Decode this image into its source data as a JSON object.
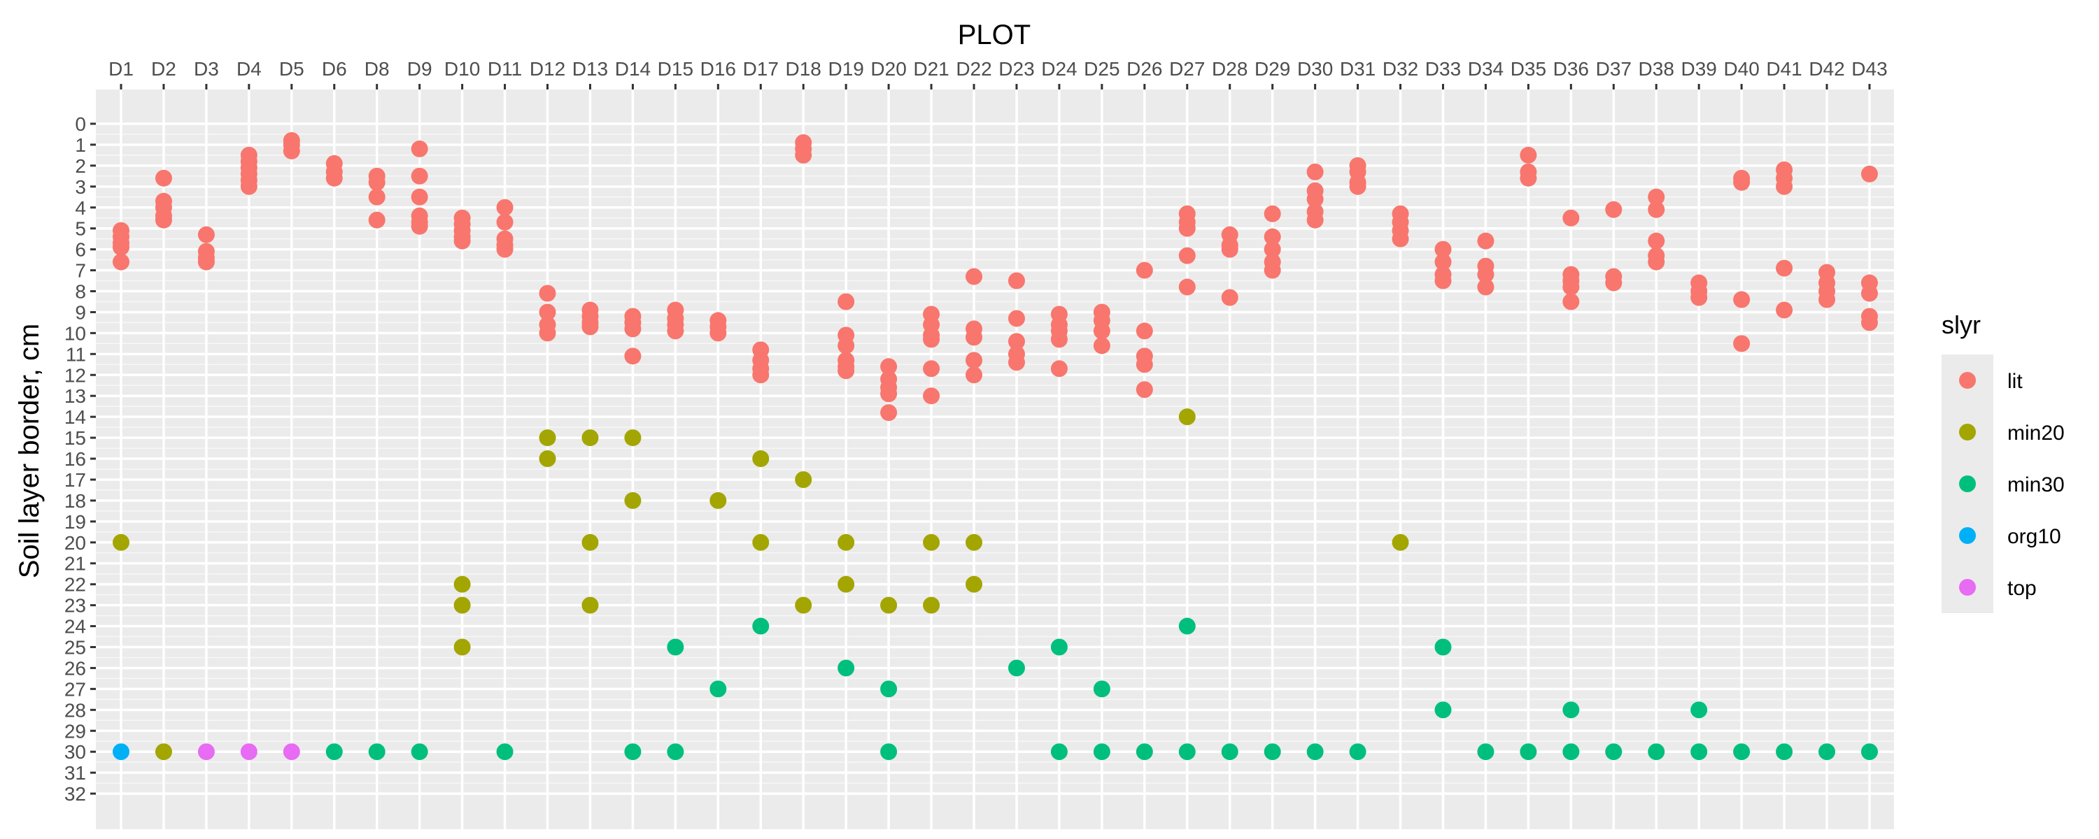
{
  "chart_data": {
    "type": "scatter",
    "title": "",
    "xlabel": "PLOT",
    "ylabel": "Soil layer border, cm",
    "x_axis_position": "top",
    "y_reversed": true,
    "ylim": [
      0,
      32
    ],
    "yticks": [
      0,
      1,
      2,
      3,
      4,
      5,
      6,
      7,
      8,
      9,
      10,
      11,
      12,
      13,
      14,
      15,
      16,
      17,
      18,
      19,
      20,
      21,
      22,
      23,
      24,
      25,
      26,
      27,
      28,
      29,
      30,
      31,
      32
    ],
    "categories": [
      "D1",
      "D2",
      "D3",
      "D4",
      "D5",
      "D6",
      "D8",
      "D9",
      "D10",
      "D11",
      "D12",
      "D13",
      "D14",
      "D15",
      "D16",
      "D17",
      "D18",
      "D19",
      "D20",
      "D21",
      "D22",
      "D23",
      "D24",
      "D25",
      "D26",
      "D27",
      "D28",
      "D29",
      "D30",
      "D31",
      "D32",
      "D33",
      "D34",
      "D35",
      "D36",
      "D37",
      "D38",
      "D39",
      "D40",
      "D41",
      "D42",
      "D43"
    ],
    "grid": true,
    "legend": {
      "title": "slyr",
      "position": "right"
    },
    "series": [
      {
        "name": "lit",
        "color": "#F8766D",
        "points": [
          [
            "D1",
            5.1
          ],
          [
            "D1",
            5.4
          ],
          [
            "D1",
            5.7
          ],
          [
            "D1",
            5.9
          ],
          [
            "D1",
            6.6
          ],
          [
            "D2",
            2.6
          ],
          [
            "D2",
            3.7
          ],
          [
            "D2",
            4.0
          ],
          [
            "D2",
            4.4
          ],
          [
            "D2",
            4.6
          ],
          [
            "D3",
            5.3
          ],
          [
            "D3",
            6.1
          ],
          [
            "D3",
            6.4
          ],
          [
            "D3",
            6.6
          ],
          [
            "D4",
            1.5
          ],
          [
            "D4",
            1.8
          ],
          [
            "D4",
            2.1
          ],
          [
            "D4",
            2.4
          ],
          [
            "D4",
            2.7
          ],
          [
            "D4",
            3.0
          ],
          [
            "D5",
            0.8
          ],
          [
            "D5",
            1.0
          ],
          [
            "D5",
            1.3
          ],
          [
            "D6",
            1.9
          ],
          [
            "D6",
            2.3
          ],
          [
            "D6",
            2.6
          ],
          [
            "D8",
            2.5
          ],
          [
            "D8",
            2.8
          ],
          [
            "D8",
            3.5
          ],
          [
            "D8",
            4.6
          ],
          [
            "D9",
            1.2
          ],
          [
            "D9",
            2.5
          ],
          [
            "D9",
            3.5
          ],
          [
            "D9",
            4.4
          ],
          [
            "D9",
            4.7
          ],
          [
            "D9",
            4.9
          ],
          [
            "D10",
            4.5
          ],
          [
            "D10",
            4.8
          ],
          [
            "D10",
            5.1
          ],
          [
            "D10",
            5.4
          ],
          [
            "D10",
            5.6
          ],
          [
            "D11",
            4.0
          ],
          [
            "D11",
            4.7
          ],
          [
            "D11",
            5.5
          ],
          [
            "D11",
            5.8
          ],
          [
            "D11",
            6.0
          ],
          [
            "D12",
            8.1
          ],
          [
            "D12",
            9.0
          ],
          [
            "D12",
            9.6
          ],
          [
            "D12",
            10.0
          ],
          [
            "D13",
            8.9
          ],
          [
            "D13",
            9.2
          ],
          [
            "D13",
            9.5
          ],
          [
            "D13",
            9.7
          ],
          [
            "D14",
            9.2
          ],
          [
            "D14",
            9.5
          ],
          [
            "D14",
            9.8
          ],
          [
            "D14",
            11.1
          ],
          [
            "D15",
            8.9
          ],
          [
            "D15",
            9.3
          ],
          [
            "D15",
            9.6
          ],
          [
            "D15",
            9.9
          ],
          [
            "D16",
            9.4
          ],
          [
            "D16",
            9.7
          ],
          [
            "D16",
            10.0
          ],
          [
            "D17",
            10.8
          ],
          [
            "D17",
            11.3
          ],
          [
            "D17",
            11.7
          ],
          [
            "D17",
            12.0
          ],
          [
            "D18",
            0.9
          ],
          [
            "D18",
            1.2
          ],
          [
            "D18",
            1.5
          ],
          [
            "D19",
            8.5
          ],
          [
            "D19",
            10.1
          ],
          [
            "D19",
            10.6
          ],
          [
            "D19",
            11.3
          ],
          [
            "D19",
            11.6
          ],
          [
            "D19",
            11.8
          ],
          [
            "D20",
            11.6
          ],
          [
            "D20",
            12.2
          ],
          [
            "D20",
            12.6
          ],
          [
            "D20",
            12.9
          ],
          [
            "D20",
            13.8
          ],
          [
            "D21",
            9.1
          ],
          [
            "D21",
            9.6
          ],
          [
            "D21",
            10.1
          ],
          [
            "D21",
            10.3
          ],
          [
            "D21",
            11.7
          ],
          [
            "D21",
            13.0
          ],
          [
            "D22",
            7.3
          ],
          [
            "D22",
            9.8
          ],
          [
            "D22",
            10.2
          ],
          [
            "D22",
            11.3
          ],
          [
            "D22",
            12.0
          ],
          [
            "D23",
            7.5
          ],
          [
            "D23",
            9.3
          ],
          [
            "D23",
            10.4
          ],
          [
            "D23",
            11.0
          ],
          [
            "D23",
            11.4
          ],
          [
            "D24",
            9.1
          ],
          [
            "D24",
            9.6
          ],
          [
            "D24",
            9.9
          ],
          [
            "D24",
            10.3
          ],
          [
            "D24",
            11.7
          ],
          [
            "D25",
            9.0
          ],
          [
            "D25",
            9.4
          ],
          [
            "D25",
            9.9
          ],
          [
            "D25",
            10.6
          ],
          [
            "D26",
            7.0
          ],
          [
            "D26",
            9.9
          ],
          [
            "D26",
            11.1
          ],
          [
            "D26",
            11.5
          ],
          [
            "D26",
            12.7
          ],
          [
            "D27",
            4.3
          ],
          [
            "D27",
            4.7
          ],
          [
            "D27",
            5.0
          ],
          [
            "D27",
            6.3
          ],
          [
            "D27",
            7.8
          ],
          [
            "D28",
            5.3
          ],
          [
            "D28",
            5.8
          ],
          [
            "D28",
            6.0
          ],
          [
            "D28",
            8.3
          ],
          [
            "D29",
            4.3
          ],
          [
            "D29",
            5.4
          ],
          [
            "D29",
            6.0
          ],
          [
            "D29",
            6.6
          ],
          [
            "D29",
            7.0
          ],
          [
            "D30",
            2.3
          ],
          [
            "D30",
            3.2
          ],
          [
            "D30",
            3.6
          ],
          [
            "D30",
            4.2
          ],
          [
            "D30",
            4.6
          ],
          [
            "D31",
            2.0
          ],
          [
            "D31",
            2.3
          ],
          [
            "D31",
            2.8
          ],
          [
            "D31",
            3.0
          ],
          [
            "D32",
            4.3
          ],
          [
            "D32",
            4.7
          ],
          [
            "D32",
            5.1
          ],
          [
            "D32",
            5.5
          ],
          [
            "D33",
            6.0
          ],
          [
            "D33",
            6.6
          ],
          [
            "D33",
            7.2
          ],
          [
            "D33",
            7.5
          ],
          [
            "D34",
            5.6
          ],
          [
            "D34",
            6.8
          ],
          [
            "D34",
            7.2
          ],
          [
            "D34",
            7.8
          ],
          [
            "D35",
            1.5
          ],
          [
            "D35",
            2.3
          ],
          [
            "D35",
            2.6
          ],
          [
            "D36",
            4.5
          ],
          [
            "D36",
            7.2
          ],
          [
            "D36",
            7.5
          ],
          [
            "D36",
            7.8
          ],
          [
            "D36",
            8.5
          ],
          [
            "D37",
            4.1
          ],
          [
            "D37",
            7.3
          ],
          [
            "D37",
            7.6
          ],
          [
            "D38",
            3.5
          ],
          [
            "D38",
            4.1
          ],
          [
            "D38",
            5.6
          ],
          [
            "D38",
            6.3
          ],
          [
            "D38",
            6.6
          ],
          [
            "D39",
            7.6
          ],
          [
            "D39",
            8.0
          ],
          [
            "D39",
            8.3
          ],
          [
            "D40",
            2.6
          ],
          [
            "D40",
            2.8
          ],
          [
            "D40",
            8.4
          ],
          [
            "D40",
            10.5
          ],
          [
            "D41",
            2.2
          ],
          [
            "D41",
            2.6
          ],
          [
            "D41",
            3.0
          ],
          [
            "D41",
            6.9
          ],
          [
            "D41",
            8.9
          ],
          [
            "D42",
            7.1
          ],
          [
            "D42",
            7.6
          ],
          [
            "D42",
            8.0
          ],
          [
            "D42",
            8.4
          ],
          [
            "D43",
            2.4
          ],
          [
            "D43",
            7.6
          ],
          [
            "D43",
            8.1
          ],
          [
            "D43",
            9.2
          ],
          [
            "D43",
            9.5
          ]
        ]
      },
      {
        "name": "min20",
        "color": "#A3A500",
        "points": [
          [
            "D1",
            20
          ],
          [
            "D2",
            30
          ],
          [
            "D10",
            22
          ],
          [
            "D10",
            23
          ],
          [
            "D10",
            25
          ],
          [
            "D12",
            15
          ],
          [
            "D12",
            16
          ],
          [
            "D13",
            15
          ],
          [
            "D13",
            20
          ],
          [
            "D13",
            23
          ],
          [
            "D14",
            15
          ],
          [
            "D14",
            18
          ],
          [
            "D16",
            18
          ],
          [
            "D17",
            16
          ],
          [
            "D17",
            20
          ],
          [
            "D18",
            17
          ],
          [
            "D18",
            23
          ],
          [
            "D19",
            20
          ],
          [
            "D19",
            22
          ],
          [
            "D20",
            23
          ],
          [
            "D21",
            20
          ],
          [
            "D21",
            23
          ],
          [
            "D22",
            20
          ],
          [
            "D22",
            22
          ],
          [
            "D27",
            14
          ],
          [
            "D32",
            20
          ]
        ]
      },
      {
        "name": "min30",
        "color": "#00BF7D",
        "points": [
          [
            "D6",
            30
          ],
          [
            "D8",
            30
          ],
          [
            "D9",
            30
          ],
          [
            "D11",
            30
          ],
          [
            "D14",
            30
          ],
          [
            "D15",
            25
          ],
          [
            "D15",
            30
          ],
          [
            "D16",
            27
          ],
          [
            "D17",
            24
          ],
          [
            "D19",
            26
          ],
          [
            "D20",
            27
          ],
          [
            "D20",
            30
          ],
          [
            "D23",
            26
          ],
          [
            "D24",
            25
          ],
          [
            "D24",
            30
          ],
          [
            "D25",
            27
          ],
          [
            "D25",
            30
          ],
          [
            "D26",
            30
          ],
          [
            "D27",
            24
          ],
          [
            "D27",
            30
          ],
          [
            "D28",
            30
          ],
          [
            "D29",
            30
          ],
          [
            "D30",
            30
          ],
          [
            "D31",
            30
          ],
          [
            "D33",
            25
          ],
          [
            "D33",
            28
          ],
          [
            "D34",
            30
          ],
          [
            "D35",
            30
          ],
          [
            "D36",
            28
          ],
          [
            "D36",
            30
          ],
          [
            "D37",
            30
          ],
          [
            "D38",
            30
          ],
          [
            "D39",
            28
          ],
          [
            "D39",
            30
          ],
          [
            "D40",
            30
          ],
          [
            "D41",
            30
          ],
          [
            "D42",
            30
          ],
          [
            "D43",
            30
          ]
        ]
      },
      {
        "name": "org10",
        "color": "#00B0F6",
        "points": [
          [
            "D1",
            30
          ]
        ]
      },
      {
        "name": "top",
        "color": "#E76BF3",
        "points": [
          [
            "D3",
            30
          ],
          [
            "D4",
            30
          ],
          [
            "D5",
            30
          ]
        ]
      }
    ]
  }
}
